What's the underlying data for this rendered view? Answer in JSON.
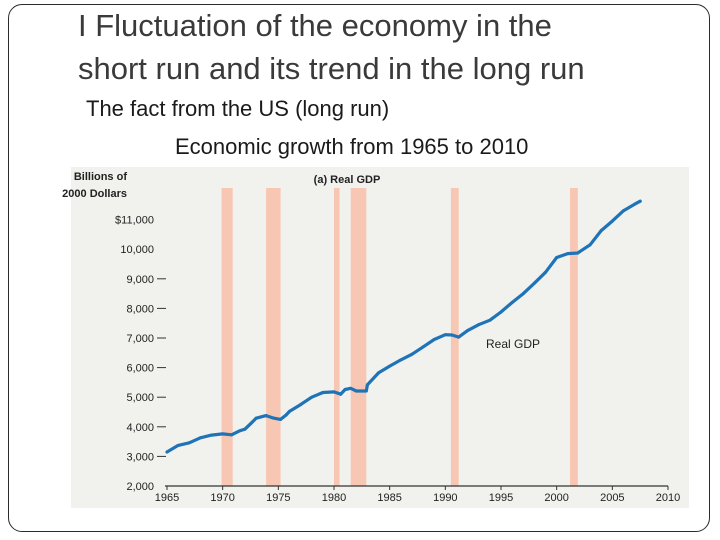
{
  "slide": {
    "title_line1": "I Fluctuation of the economy in the",
    "title_line2": "short run and its trend in the long run",
    "subtitle_1": "The fact from the US (long run)",
    "subtitle_2": "Economic growth from 1965 to 2010"
  },
  "colors": {
    "background": "#f1f1ee",
    "recession": "#f8c7b3",
    "line": "#1f73b7",
    "axis": "#333333",
    "text": "#222222"
  },
  "chart_data": {
    "type": "line",
    "title": "(a) Real GDP",
    "ylabel_line1": "Billions of",
    "ylabel_line2": "2000 Dollars",
    "xlabel": "",
    "series_label": "Real GDP",
    "xlim": [
      1965,
      2010
    ],
    "ylim": [
      2000,
      12000
    ],
    "x_ticks": [
      1965,
      1970,
      1975,
      1980,
      1985,
      1990,
      1995,
      2000,
      2005,
      2010
    ],
    "y_ticks": [
      {
        "value": 2000,
        "label": "2,000"
      },
      {
        "value": 3000,
        "label": "3,000"
      },
      {
        "value": 4000,
        "label": "4,000"
      },
      {
        "value": 5000,
        "label": "5,000"
      },
      {
        "value": 6000,
        "label": "6,000"
      },
      {
        "value": 7000,
        "label": "7,000"
      },
      {
        "value": 8000,
        "label": "8,000"
      },
      {
        "value": 9000,
        "label": "9,000"
      },
      {
        "value": 10000,
        "label": "10,000"
      },
      {
        "value": 11000,
        "label": "$11,000"
      }
    ],
    "recessions": [
      {
        "start": 1969.9,
        "end": 1970.9
      },
      {
        "start": 1973.9,
        "end": 1975.2
      },
      {
        "start": 1980.0,
        "end": 1980.5
      },
      {
        "start": 1981.5,
        "end": 1982.9
      },
      {
        "start": 1990.5,
        "end": 1991.2
      },
      {
        "start": 2001.2,
        "end": 2001.9
      }
    ],
    "series": [
      {
        "name": "Real GDP",
        "x": [
          1965,
          1966,
          1967,
          1968,
          1969,
          1970,
          1970.8,
          1971.5,
          1972,
          1972.5,
          1973,
          1973.9,
          1974.5,
          1975.2,
          1975.7,
          1976,
          1977,
          1978,
          1979,
          1980,
          1980.6,
          1981,
          1981.5,
          1982,
          1982.9,
          1983,
          1984,
          1985,
          1986,
          1987,
          1988,
          1989,
          1990,
          1990.6,
          1991.2,
          1992,
          1993,
          1994,
          1995,
          1996,
          1997,
          1998,
          1999,
          2000,
          2001,
          2001.9,
          2002,
          2003,
          2004,
          2005,
          2006,
          2007,
          2007.5
        ],
        "values": [
          3150,
          3370,
          3460,
          3630,
          3720,
          3760,
          3730,
          3860,
          3920,
          4100,
          4290,
          4380,
          4300,
          4250,
          4400,
          4520,
          4750,
          5000,
          5160,
          5180,
          5100,
          5260,
          5300,
          5210,
          5210,
          5420,
          5820,
          6050,
          6260,
          6450,
          6700,
          6950,
          7110,
          7100,
          7030,
          7250,
          7450,
          7600,
          7880,
          8200,
          8500,
          8850,
          9220,
          9720,
          9850,
          9870,
          9900,
          10150,
          10630,
          10950,
          11300,
          11520,
          11620
        ]
      }
    ]
  }
}
